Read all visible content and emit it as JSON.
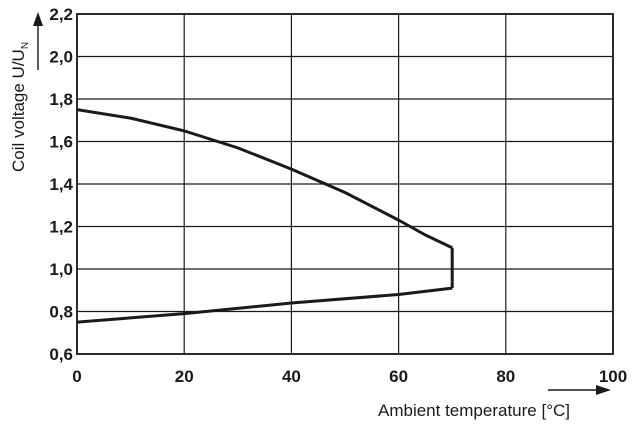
{
  "chart_data": {
    "type": "line",
    "xlabel": "Ambient temperature [°C]",
    "ylabel": "Coil voltage U/U",
    "ylabel_subscript": "N",
    "xlim": [
      0,
      100
    ],
    "ylim": [
      0.6,
      2.2
    ],
    "x_ticks": [
      {
        "value": 0,
        "label": "0"
      },
      {
        "value": 20,
        "label": "20"
      },
      {
        "value": 40,
        "label": "40"
      },
      {
        "value": 60,
        "label": "60"
      },
      {
        "value": 80,
        "label": "80"
      },
      {
        "value": 100,
        "label": "100"
      }
    ],
    "y_ticks": [
      {
        "value": 0.6,
        "label": "0,6"
      },
      {
        "value": 0.8,
        "label": "0,8"
      },
      {
        "value": 1.0,
        "label": "1,0"
      },
      {
        "value": 1.2,
        "label": "1,2"
      },
      {
        "value": 1.4,
        "label": "1,4"
      },
      {
        "value": 1.6,
        "label": "1,6"
      },
      {
        "value": 1.8,
        "label": "1,8"
      },
      {
        "value": 2.0,
        "label": "2,0"
      },
      {
        "value": 2.2,
        "label": "2,2"
      }
    ],
    "grid": true,
    "series": [
      {
        "x": [
          0,
          10,
          20,
          30,
          40,
          50,
          60,
          65,
          70
        ],
        "y": [
          1.75,
          1.71,
          1.65,
          1.57,
          1.47,
          1.36,
          1.23,
          1.16,
          1.1
        ]
      },
      {
        "x": [
          70,
          70
        ],
        "y": [
          1.1,
          0.91
        ]
      },
      {
        "x": [
          70,
          60,
          40,
          20,
          0
        ],
        "y": [
          0.91,
          0.88,
          0.84,
          0.79,
          0.75
        ]
      }
    ],
    "colors": {
      "line": "#1a1a1a",
      "grid": "#1a1a1a",
      "background": "#ffffff"
    }
  }
}
